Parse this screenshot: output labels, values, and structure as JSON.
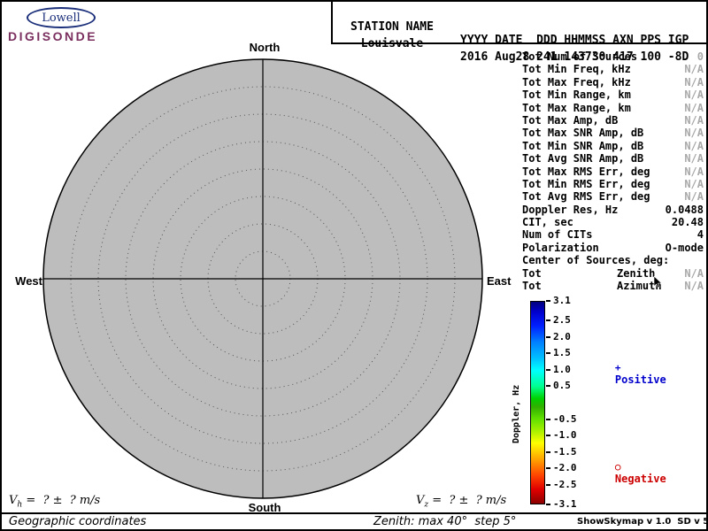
{
  "logo": {
    "name": "Lowell",
    "subname": "DIGISONDE"
  },
  "header": {
    "labels": {
      "station": "STATION NAME",
      "columns": "YYYY DATE  DDD HHMMSS AXN PPS IGP"
    },
    "values": {
      "station": "Louisvale",
      "columns": "2016 Aug28 241 143730 417 100 -8D"
    }
  },
  "compass": {
    "north": "North",
    "south": "South",
    "west": "West",
    "east": "East"
  },
  "stats": {
    "rows": [
      {
        "label": "Tot Num of Sources",
        "value": "0",
        "muted": true
      },
      {
        "label": "Tot Min Freq, kHz",
        "value": "N/A",
        "muted": true
      },
      {
        "label": "Tot Max Freq, kHz",
        "value": "N/A",
        "muted": true
      },
      {
        "label": "Tot Min Range, km",
        "value": "N/A",
        "muted": true
      },
      {
        "label": "Tot Max Range, km",
        "value": "N/A",
        "muted": true
      },
      {
        "label": "Tot Max Amp, dB",
        "value": "N/A",
        "muted": true
      },
      {
        "label": "Tot Max SNR Amp, dB",
        "value": "N/A",
        "muted": true
      },
      {
        "label": "Tot Min SNR Amp, dB",
        "value": "N/A",
        "muted": true
      },
      {
        "label": "Tot Avg SNR Amp, dB",
        "value": "N/A",
        "muted": true
      },
      {
        "label": "Tot Max RMS Err, deg",
        "value": "N/A",
        "muted": true
      },
      {
        "label": "Tot Min RMS Err, deg",
        "value": "N/A",
        "muted": true
      },
      {
        "label": "Tot Avg RMS Err, deg",
        "value": "N/A",
        "muted": true
      },
      {
        "label": "Doppler Res, Hz",
        "value": "0.0488",
        "muted": false
      },
      {
        "label": "CIT, sec",
        "value": "20.48",
        "muted": false
      },
      {
        "label": "Num of CITs",
        "value": "4",
        "muted": false
      },
      {
        "label": "Polarization",
        "value": "O-mode",
        "muted": false
      },
      {
        "label": "Center of Sources, deg:",
        "value": "",
        "muted": false
      },
      {
        "label": "Tot",
        "mid": "Zenith",
        "value": "N/A",
        "muted": true
      },
      {
        "label": "Tot",
        "mid": "Azimuth",
        "value": "N/A",
        "muted": true
      }
    ]
  },
  "colorbar": {
    "title": "Doppler, Hz",
    "max": 3.1,
    "min": -3.1,
    "ticks": [
      "3.1",
      "2.5",
      "2.0",
      "1.5",
      "1.0",
      "0.5",
      "-0.5",
      "-1.0",
      "-1.5",
      "-2.0",
      "-2.5",
      "-3.1"
    ],
    "positive": {
      "symbol": "+",
      "label": "Positive",
      "color": "#0000cc"
    },
    "negative": {
      "symbol": "○",
      "label": "Negative",
      "color": "#cc0000"
    }
  },
  "footer": {
    "vh": {
      "base": "V",
      "sub": "h",
      "rest": " =  ? ±  ? m/s"
    },
    "vz": {
      "base": "V",
      "sub": "z",
      "rest": " =  ? ±  ? m/s"
    },
    "coordinates": "Geographic coordinates",
    "zenith": "Zenith: max 40°  step 5°",
    "version": "ShowSkymap v 1.0  SD v 5.1"
  }
}
